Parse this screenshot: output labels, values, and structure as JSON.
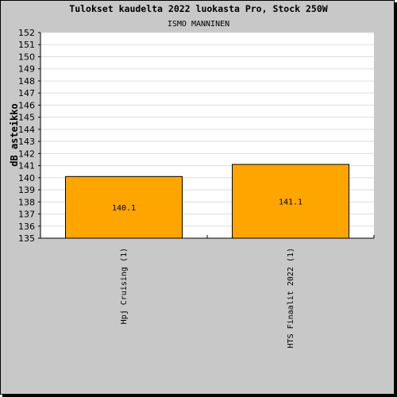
{
  "chart_data": {
    "type": "bar",
    "title": "Tulokset kaudelta 2022 luokasta Pro, Stock 250W",
    "subtitle": "ISMO MANNINEN",
    "ylabel": "dB asteikko",
    "xlabel": "",
    "ylim": [
      135,
      152
    ],
    "yticks": [
      135,
      136,
      137,
      138,
      139,
      140,
      141,
      142,
      143,
      144,
      145,
      146,
      147,
      148,
      149,
      150,
      151,
      152
    ],
    "grid": true,
    "categories": [
      "Hpj Cruising (1)",
      "HTS Finaalit 2022 (1)"
    ],
    "values": [
      140.1,
      141.1
    ],
    "value_labels": [
      "140.1",
      "141.1"
    ],
    "bar_color": "#ffa500",
    "background_color": "#c8c8c8",
    "plot_background": "#ffffff"
  }
}
